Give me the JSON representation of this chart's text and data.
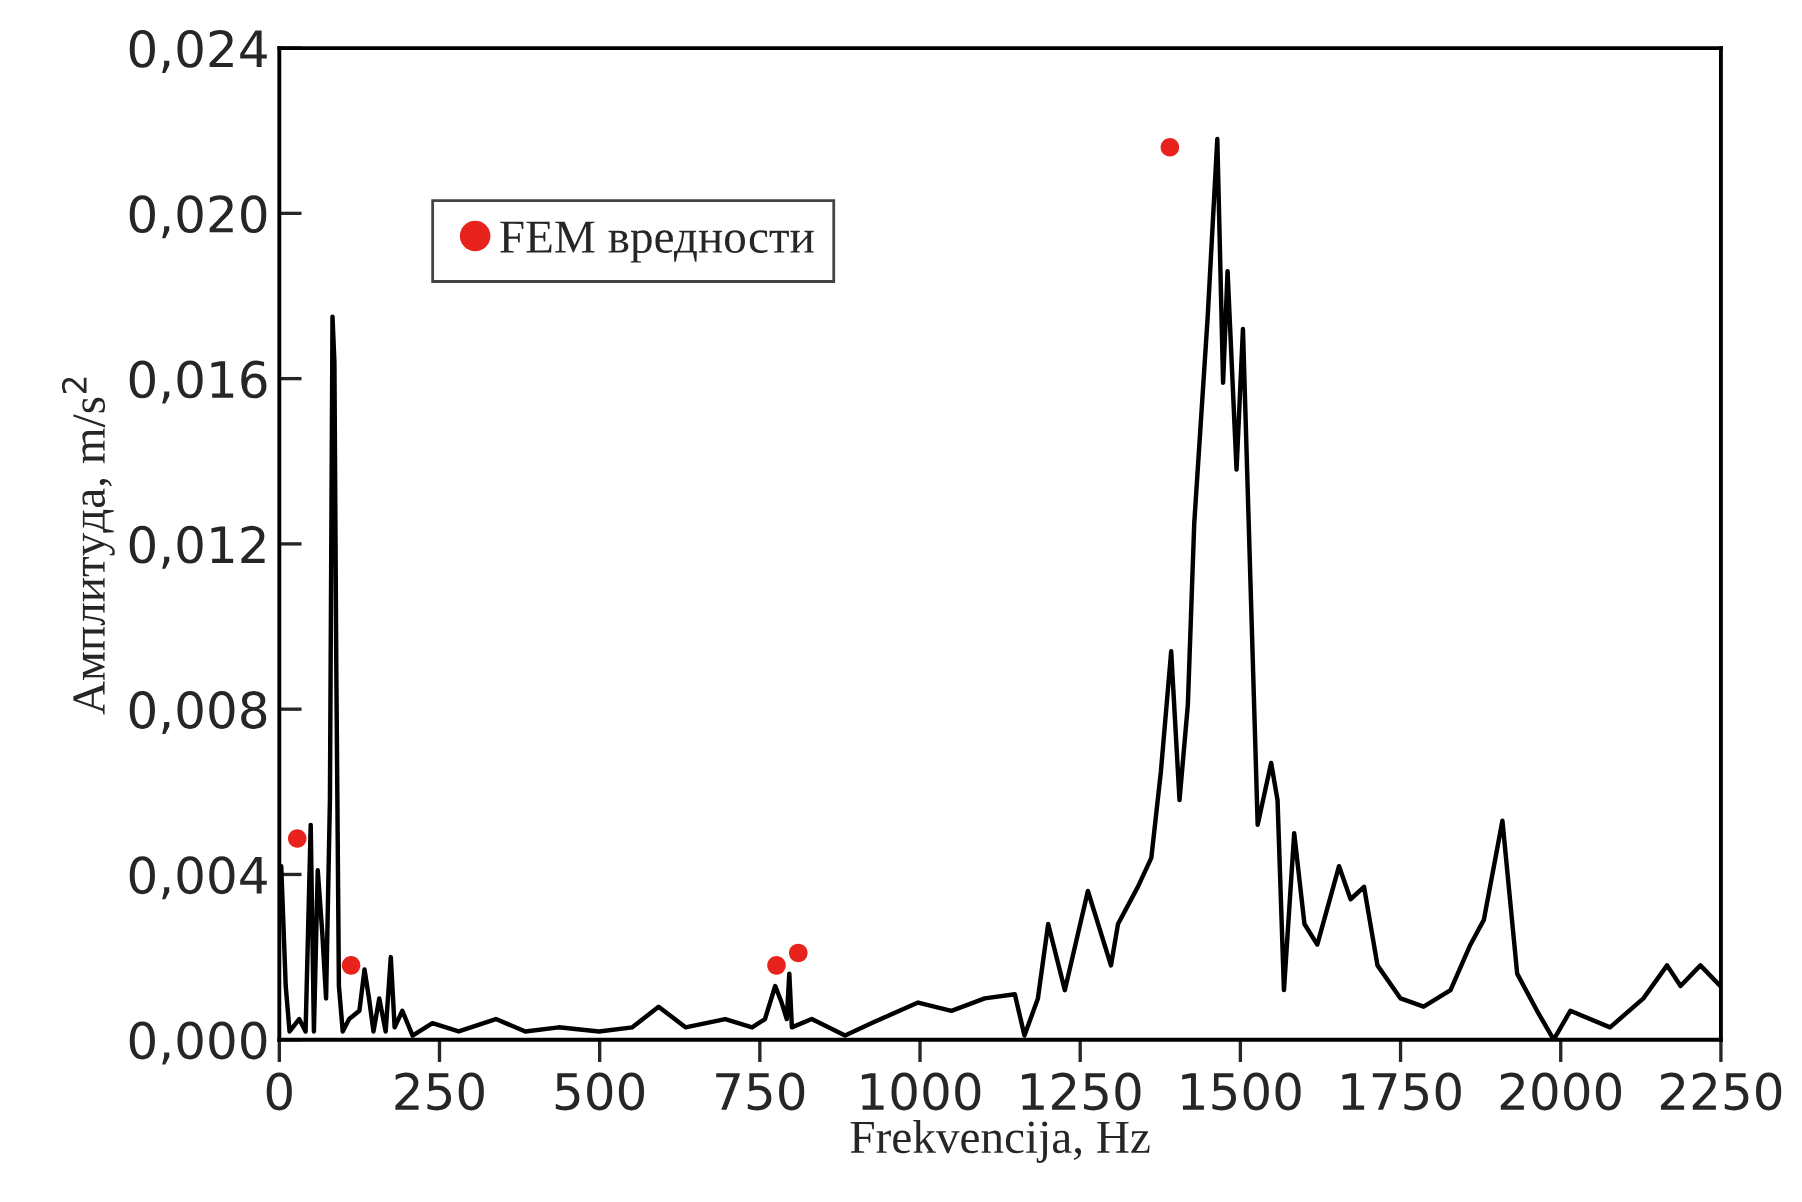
{
  "chart_data": {
    "type": "line",
    "xlabel": "Frekvencija, Hz",
    "ylabel": "Амплитуда, m/s$^{2}$",
    "xlim": [
      0,
      2250
    ],
    "xticks": [
      0,
      250,
      500,
      750,
      1000,
      1250,
      1500,
      1750,
      2000,
      2250
    ],
    "ylim": [
      0,
      0.024
    ],
    "yticks": [
      {
        "value": 0,
        "label": "0,000"
      },
      {
        "value": 0.004,
        "label": "0,004"
      },
      {
        "value": 0.008,
        "label": "0,008"
      },
      {
        "value": 0.012,
        "label": "0,012"
      },
      {
        "value": 0.016,
        "label": "0,016"
      },
      {
        "value": 0.02,
        "label": "0,020"
      },
      {
        "value": 0.024,
        "label": "0,024"
      }
    ],
    "grid": false,
    "legend": "top left",
    "series": [
      {
        "color": "#000000",
        "marker": "none",
        "line_style": "solid",
        "x": [
          3,
          10,
          16,
          31,
          41,
          49,
          54,
          60,
          67,
          73,
          79,
          83,
          86,
          89,
          93,
          99,
          109,
          125,
          133,
          140,
          147,
          156,
          166,
          174,
          180,
          192,
          208,
          239,
          280,
          338,
          384,
          436,
          499,
          551,
          592,
          634,
          696,
          738,
          758,
          774,
          784,
          792,
          796,
          800,
          831,
          883,
          924,
          997,
          1049,
          1101,
          1148,
          1163,
          1184,
          1200,
          1226,
          1262,
          1298,
          1309,
          1340,
          1361,
          1376,
          1392,
          1405,
          1418,
          1428,
          1449,
          1464,
          1473,
          1480,
          1494,
          1504,
          1527,
          1548,
          1558,
          1568,
          1584,
          1600,
          1620,
          1654,
          1672,
          1693,
          1714,
          1750,
          1786,
          1828,
          1859,
          1880,
          1909,
          1932,
          1963,
          1989,
          2015,
          2077,
          2129,
          2166,
          2187,
          2218,
          2249
        ],
        "values": [
          0.0042,
          0.0013,
          0.0002,
          0.0005,
          0.0002,
          0.0052,
          0.0002,
          0.0041,
          0.0026,
          0.001,
          0.0058,
          0.0175,
          0.0164,
          0.0089,
          0.0013,
          0.0002,
          0.0005,
          0.0007,
          0.0017,
          0.001,
          0.0002,
          0.001,
          0.0002,
          0.002,
          0.0003,
          0.0007,
          0.0001,
          0.0004,
          0.0002,
          0.0005,
          0.0002,
          0.0003,
          0.0002,
          0.0003,
          0.0008,
          0.0003,
          0.0005,
          0.0003,
          0.0005,
          0.0013,
          0.0009,
          0.0005,
          0.0016,
          0.0003,
          0.0005,
          0.0001,
          0.0004,
          0.0009,
          0.0007,
          0.001,
          0.0011,
          0.0001,
          0.001,
          0.0028,
          0.0012,
          0.0036,
          0.0018,
          0.0028,
          0.0037,
          0.0044,
          0.0065,
          0.0094,
          0.0058,
          0.0081,
          0.0125,
          0.0175,
          0.0218,
          0.0159,
          0.0186,
          0.0138,
          0.0172,
          0.0052,
          0.0067,
          0.0058,
          0.0012,
          0.005,
          0.0028,
          0.0023,
          0.0042,
          0.0034,
          0.0037,
          0.0018,
          0.001,
          0.0008,
          0.0012,
          0.0023,
          0.0029,
          0.0053,
          0.0016,
          0.0007,
          0.0,
          0.0007,
          0.0003,
          0.001,
          0.0018,
          0.0013,
          0.0018,
          0.0013
        ]
      },
      {
        "type": "scatter",
        "name": "FEM вредности",
        "color": "#e8231e",
        "marker": "circle",
        "x": [
          28,
          112,
          776,
          810,
          1390
        ],
        "values": [
          0.00487,
          0.0018,
          0.0018,
          0.0021,
          0.0216
        ]
      }
    ]
  }
}
